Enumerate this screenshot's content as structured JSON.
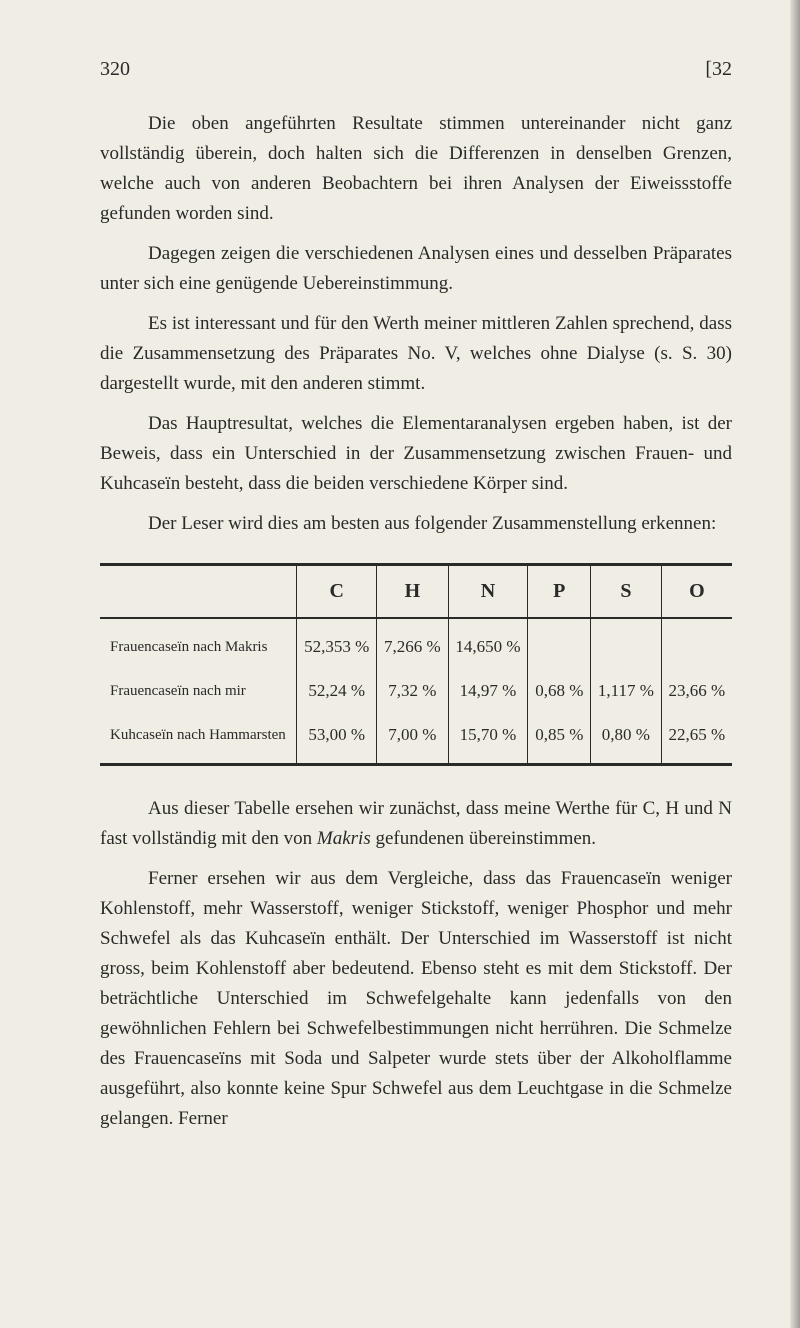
{
  "header": {
    "page_left": "320",
    "page_right": "[32"
  },
  "paragraphs": {
    "p1": "Die oben angeführten Resultate stimmen untereinander nicht ganz vollständig überein, doch halten sich die Differenzen in denselben Grenzen, welche auch von anderen Beobachtern bei ihren Analysen der Eiweissstoffe gefunden worden sind.",
    "p2": "Dagegen zeigen die verschiedenen Analysen eines und desselben Präparates unter sich eine genügende Uebereinstimmung.",
    "p3": "Es ist interessant und für den Werth meiner mittleren Zahlen sprechend, dass die Zusammensetzung des Präparates No. V, welches ohne Dialyse (s. S. 30) dargestellt wurde, mit den anderen stimmt.",
    "p4": "Das Hauptresultat, welches die Elementaranalysen ergeben haben, ist der Beweis, dass ein Unterschied in der Zusammensetzung zwischen Frauen- und Kuhcaseïn besteht, dass die beiden verschiedene Körper sind.",
    "p5": "Der Leser wird dies am besten aus folgender Zusammenstellung erkennen:",
    "p6_a": "Aus dieser Tabelle ersehen wir zunächst, dass meine Werthe für C, H und N fast vollständig mit den von ",
    "p6_italic": "Makris",
    "p6_b": " gefundenen übereinstimmen.",
    "p7": "Ferner ersehen wir aus dem Vergleiche, dass das Frauencaseïn weniger Kohlenstoff, mehr Wasserstoff, weniger Stickstoff, weniger Phosphor und mehr Schwefel als das Kuhcaseïn enthält. Der Unterschied im Wasserstoff ist nicht gross, beim Kohlenstoff aber bedeutend. Ebenso steht es mit dem Stickstoff. Der beträchtliche Unterschied im Schwefelgehalte kann jedenfalls von den gewöhnlichen Fehlern bei Schwefelbestimmungen nicht herrühren. Die Schmelze des Frauencaseïns mit Soda und Salpeter wurde stets über der Alkoholflamme ausgeführt, also konnte keine Spur Schwefel aus dem Leuchtgase in die Schmelze gelangen. Ferner"
  },
  "table": {
    "headers": [
      "",
      "C",
      "H",
      "N",
      "P",
      "S",
      "O"
    ],
    "rows": [
      {
        "label": "Frauencaseïn nach Makris",
        "cells": [
          "52,353 %",
          "7,266 %",
          "14,650 %",
          "",
          "",
          ""
        ]
      },
      {
        "label": "Frauencaseïn nach mir",
        "cells": [
          "52,24 %",
          "7,32 %",
          "14,97 %",
          "0,68 %",
          "1,117 %",
          "23,66 %"
        ]
      },
      {
        "label": "Kuhcaseïn nach Hammarsten",
        "cells": [
          "53,00 %",
          "7,00 %",
          "15,70 %",
          "0,85 %",
          "0,80 %",
          "22,65 %"
        ]
      }
    ]
  }
}
